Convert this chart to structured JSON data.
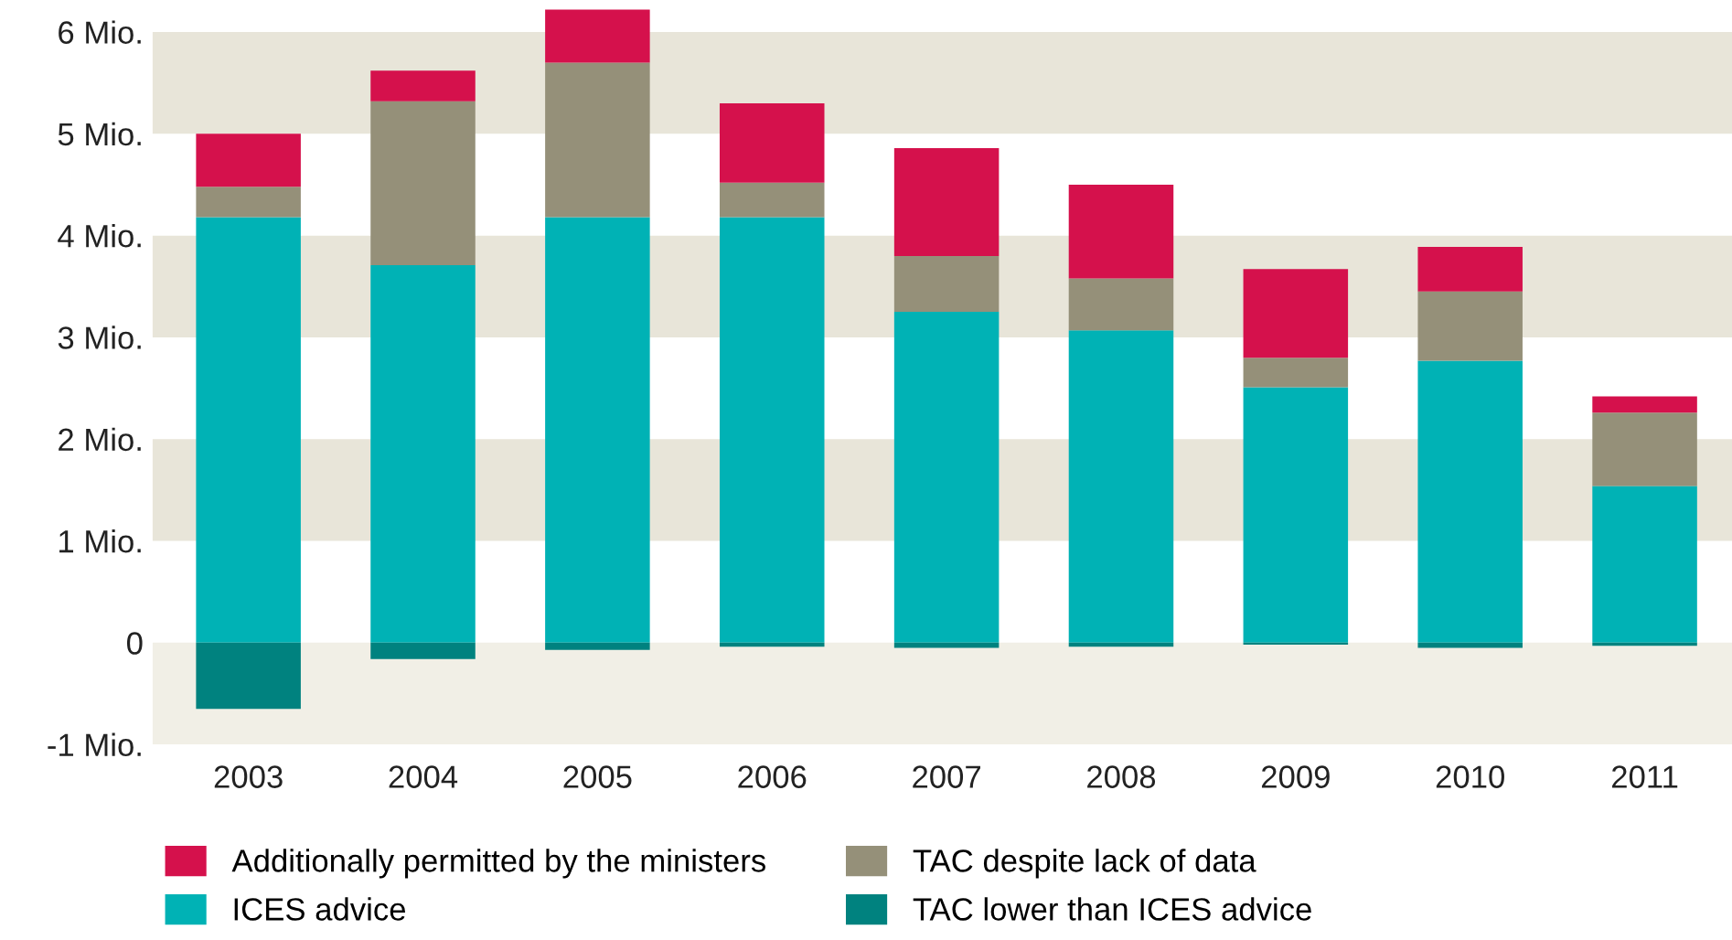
{
  "chart_data": {
    "type": "bar",
    "stacked": true,
    "categories": [
      "2003",
      "2004",
      "2005",
      "2006",
      "2007",
      "2008",
      "2009",
      "2010",
      "2011"
    ],
    "series": [
      {
        "name": "ICES advice",
        "color": "#00b2b5",
        "values": [
          4.18,
          3.71,
          4.18,
          4.18,
          3.25,
          3.07,
          2.51,
          2.77,
          1.54
        ]
      },
      {
        "name": "TAC despite lack of data",
        "color": "#959079",
        "values": [
          0.3,
          1.61,
          1.52,
          0.34,
          0.55,
          0.51,
          0.29,
          0.68,
          0.72
        ]
      },
      {
        "name": "Additionally permitted by the ministers",
        "color": "#d5114c",
        "values": [
          0.52,
          0.3,
          0.52,
          0.78,
          1.06,
          0.92,
          0.87,
          0.44,
          0.16
        ]
      },
      {
        "name": "TAC lower than ICES advice",
        "color": "#00827f",
        "values": [
          -0.65,
          -0.16,
          -0.07,
          -0.04,
          -0.05,
          -0.04,
          -0.02,
          -0.05,
          -0.03
        ]
      }
    ],
    "ylim": [
      -1,
      6.25
    ],
    "yticks": [
      {
        "value": -1,
        "label": "-1 Mio."
      },
      0,
      {
        "value": 1,
        "label": "1 Mio."
      },
      {
        "value": 2,
        "label": "2 Mio."
      },
      {
        "value": 3,
        "label": "3 Mio."
      },
      {
        "value": 4,
        "label": "4 Mio."
      },
      {
        "value": 5,
        "label": "5 Mio."
      },
      {
        "value": 6,
        "label": "6 Mio."
      }
    ],
    "bands": [
      {
        "axis": "y",
        "from": -1,
        "to": 0,
        "color": "#f1efe6"
      },
      {
        "axis": "y",
        "from": 1,
        "to": 2,
        "color": "#e8e5d9"
      },
      {
        "axis": "y",
        "from": 3,
        "to": 4,
        "color": "#e8e5d9"
      },
      {
        "axis": "y",
        "from": 5,
        "to": 6,
        "color": "#e8e5d9"
      }
    ],
    "grid": false,
    "legend": "bottom"
  }
}
